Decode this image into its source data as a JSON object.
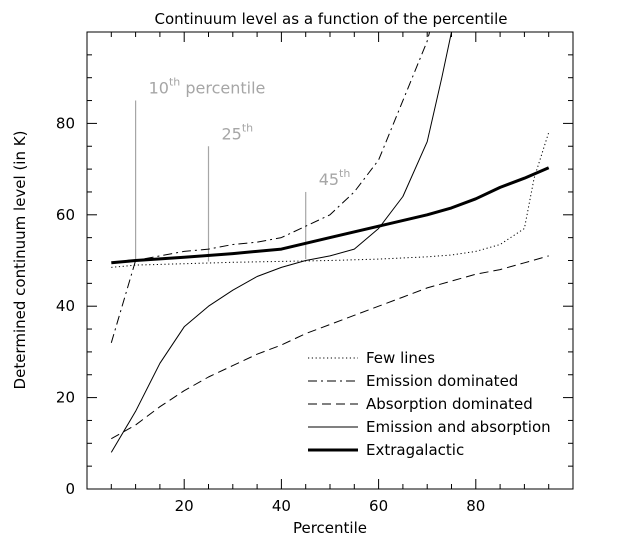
{
  "chart_data": {
    "type": "line",
    "title": "Continuum level as a function of the percentile",
    "xlabel": "Percentile",
    "ylabel": "Determined continuum level (in K)",
    "xlim": [
      0,
      100
    ],
    "ylim": [
      0,
      100
    ],
    "xticks": [
      20,
      40,
      60,
      80
    ],
    "yticks": [
      0,
      20,
      40,
      60,
      80
    ],
    "grid": false,
    "legend_position": "bottom-right",
    "series": [
      {
        "name": "Few lines",
        "style": "dotted",
        "color": "#000000",
        "x": [
          5,
          10,
          20,
          30,
          40,
          50,
          60,
          70,
          75,
          80,
          85,
          90,
          92,
          95
        ],
        "y": [
          48.5,
          49,
          49.3,
          49.6,
          49.8,
          50,
          50.3,
          50.8,
          51.2,
          52,
          53.5,
          57,
          68,
          78
        ]
      },
      {
        "name": "Emission dominated",
        "style": "dashdot",
        "color": "#000000",
        "x": [
          5,
          10,
          15,
          20,
          25,
          30,
          35,
          40,
          45,
          50,
          55,
          60,
          65,
          70,
          70.5
        ],
        "y": [
          32,
          50,
          51,
          52,
          52.5,
          53.5,
          54,
          55,
          57.5,
          60,
          65,
          72,
          85,
          98,
          100
        ]
      },
      {
        "name": "Absorption dominated",
        "style": "dashed",
        "color": "#000000",
        "x": [
          5,
          10,
          15,
          20,
          25,
          30,
          35,
          40,
          45,
          50,
          55,
          60,
          65,
          70,
          75,
          80,
          85,
          90,
          95
        ],
        "y": [
          11,
          14,
          18,
          21.5,
          24.5,
          27,
          29.5,
          31.5,
          34,
          36,
          38,
          40,
          42,
          44,
          45.5,
          47,
          48,
          49.5,
          51
        ]
      },
      {
        "name": "Emission and absorption",
        "style": "solid",
        "color": "#000000",
        "x": [
          5,
          10,
          15,
          20,
          25,
          30,
          35,
          40,
          45,
          50,
          55,
          60,
          65,
          70,
          73,
          75
        ],
        "y": [
          8,
          17,
          27.5,
          35.5,
          40,
          43.5,
          46.5,
          48.5,
          50,
          51,
          52.5,
          57,
          64,
          76,
          90,
          100
        ]
      },
      {
        "name": "Extragalactic",
        "style": "thick",
        "color": "#000000",
        "x": [
          5,
          10,
          20,
          30,
          40,
          50,
          60,
          70,
          75,
          80,
          85,
          90,
          95
        ],
        "y": [
          49.5,
          50,
          50.7,
          51.5,
          52.5,
          55,
          57.5,
          60,
          61.5,
          63.5,
          66,
          68,
          70.3
        ]
      }
    ],
    "annotations": [
      {
        "base": "10",
        "sup": "th",
        "suffix": " percentile",
        "x": 10,
        "y_top": 85
      },
      {
        "base": "25",
        "sup": "th",
        "suffix": "",
        "x": 25,
        "y_top": 75
      },
      {
        "base": "45",
        "sup": "th",
        "suffix": "",
        "x": 45,
        "y_top": 65
      }
    ],
    "annotation_color": "#a6a6a6"
  }
}
